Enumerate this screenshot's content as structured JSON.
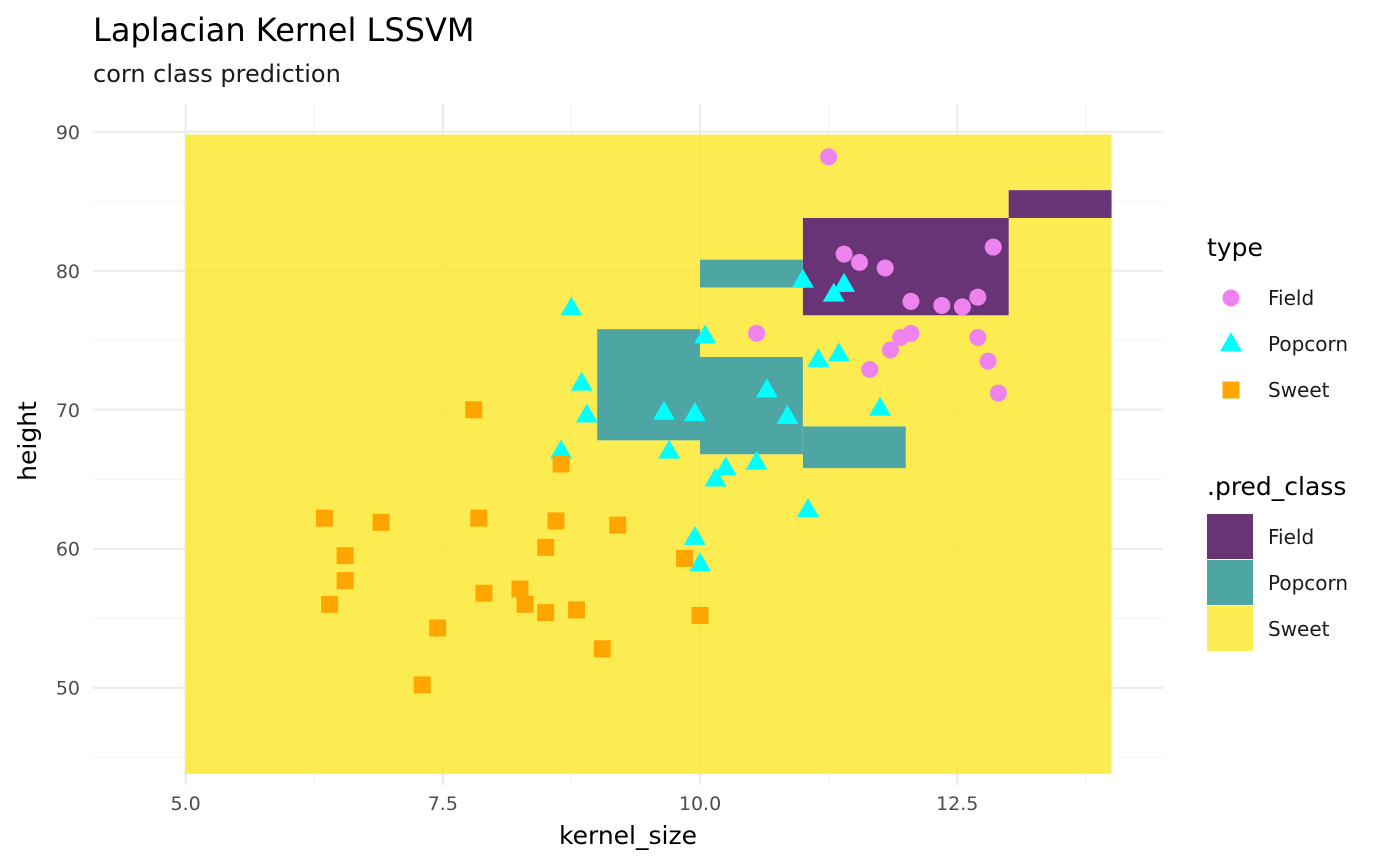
{
  "chart_data": {
    "type": "scatter",
    "title": "Laplacian Kernel LSSVM",
    "subtitle": "corn class prediction",
    "xlabel": "kernel_size",
    "ylabel": "height",
    "xlim": [
      4.1,
      14.5
    ],
    "ylim": [
      43,
      92
    ],
    "x_ticks": [
      5.0,
      7.5,
      10.0,
      12.5
    ],
    "x_tick_labels": [
      "5.0",
      "7.5",
      "10.0",
      "12.5"
    ],
    "y_ticks": [
      50,
      60,
      70,
      80,
      90
    ],
    "y_tick_labels": [
      "50",
      "60",
      "70",
      "80",
      "90"
    ],
    "grid": true,
    "background_region": {
      "class": "Sweet",
      "x": [
        5.0,
        14.0
      ],
      "y": [
        43.8,
        89.8
      ]
    },
    "tiles": [
      {
        "class": "Field",
        "x": [
          13.0,
          14.0
        ],
        "y": [
          83.8,
          85.8
        ]
      },
      {
        "class": "Field",
        "x": [
          11.0,
          13.0
        ],
        "y": [
          76.8,
          83.8
        ]
      },
      {
        "class": "Popcorn",
        "x": [
          10.0,
          11.0
        ],
        "y": [
          78.8,
          80.8
        ]
      },
      {
        "class": "Popcorn",
        "x": [
          9.0,
          10.0
        ],
        "y": [
          67.8,
          75.8
        ]
      },
      {
        "class": "Popcorn",
        "x": [
          10.0,
          11.0
        ],
        "y": [
          66.8,
          73.8
        ]
      },
      {
        "class": "Popcorn",
        "x": [
          11.0,
          12.0
        ],
        "y": [
          65.8,
          68.8
        ]
      }
    ],
    "series": [
      {
        "name": "Field",
        "marker": "circle",
        "color": "#EE82EE",
        "points": [
          [
            11.25,
            88.2
          ],
          [
            11.4,
            81.2
          ],
          [
            11.55,
            80.6
          ],
          [
            11.8,
            80.2
          ],
          [
            12.85,
            81.7
          ],
          [
            12.05,
            77.8
          ],
          [
            12.35,
            77.5
          ],
          [
            12.55,
            77.4
          ],
          [
            12.7,
            78.1
          ],
          [
            10.55,
            75.5
          ],
          [
            11.95,
            75.2
          ],
          [
            12.05,
            75.5
          ],
          [
            11.85,
            74.3
          ],
          [
            11.65,
            72.9
          ],
          [
            12.7,
            75.2
          ],
          [
            12.8,
            73.5
          ],
          [
            12.9,
            71.2
          ]
        ]
      },
      {
        "name": "Popcorn",
        "marker": "triangle",
        "color": "#00FFFF",
        "points": [
          [
            8.75,
            77.3
          ],
          [
            10.05,
            75.3
          ],
          [
            11.0,
            79.3
          ],
          [
            11.3,
            78.3
          ],
          [
            11.4,
            79.0
          ],
          [
            8.85,
            71.9
          ],
          [
            8.9,
            69.6
          ],
          [
            9.65,
            69.8
          ],
          [
            9.95,
            69.7
          ],
          [
            10.65,
            71.4
          ],
          [
            10.85,
            69.5
          ],
          [
            11.15,
            73.6
          ],
          [
            11.35,
            74.0
          ],
          [
            11.75,
            70.1
          ],
          [
            8.65,
            67.0
          ],
          [
            9.7,
            67.0
          ],
          [
            10.15,
            65.0
          ],
          [
            10.25,
            65.8
          ],
          [
            10.55,
            66.2
          ],
          [
            11.05,
            62.8
          ],
          [
            9.95,
            60.8
          ],
          [
            10.0,
            58.9
          ]
        ]
      },
      {
        "name": "Sweet",
        "marker": "square",
        "color": "#FFA500",
        "points": [
          [
            6.35,
            62.2
          ],
          [
            6.9,
            61.9
          ],
          [
            6.55,
            59.5
          ],
          [
            6.55,
            57.7
          ],
          [
            6.4,
            56.0
          ],
          [
            7.45,
            54.3
          ],
          [
            7.3,
            50.2
          ],
          [
            7.85,
            62.2
          ],
          [
            7.9,
            56.8
          ],
          [
            7.8,
            70.0
          ],
          [
            8.25,
            57.1
          ],
          [
            8.3,
            56.0
          ],
          [
            8.5,
            55.4
          ],
          [
            8.5,
            60.1
          ],
          [
            8.6,
            62.0
          ],
          [
            8.65,
            66.1
          ],
          [
            8.8,
            55.6
          ],
          [
            9.05,
            52.8
          ],
          [
            9.2,
            61.7
          ],
          [
            9.85,
            59.3
          ],
          [
            10.0,
            55.2
          ]
        ]
      }
    ],
    "legends": [
      {
        "title": "type",
        "position": "right",
        "entries": [
          {
            "label": "Field",
            "marker": "circle",
            "color": "#EE82EE"
          },
          {
            "label": "Popcorn",
            "marker": "triangle",
            "color": "#00FFFF"
          },
          {
            "label": "Sweet",
            "marker": "square",
            "color": "#FFA500"
          }
        ]
      },
      {
        "title": ".pred_class",
        "position": "right",
        "entries": [
          {
            "label": "Field",
            "color": "#440154"
          },
          {
            "label": "Popcorn",
            "color": "#21908C"
          },
          {
            "label": "Sweet",
            "color": "#FDE725"
          }
        ]
      }
    ],
    "fill_colors": {
      "Field": "#440154",
      "Popcorn": "#21908C",
      "Sweet": "#FDE725"
    },
    "fill_opacity": 0.8
  }
}
